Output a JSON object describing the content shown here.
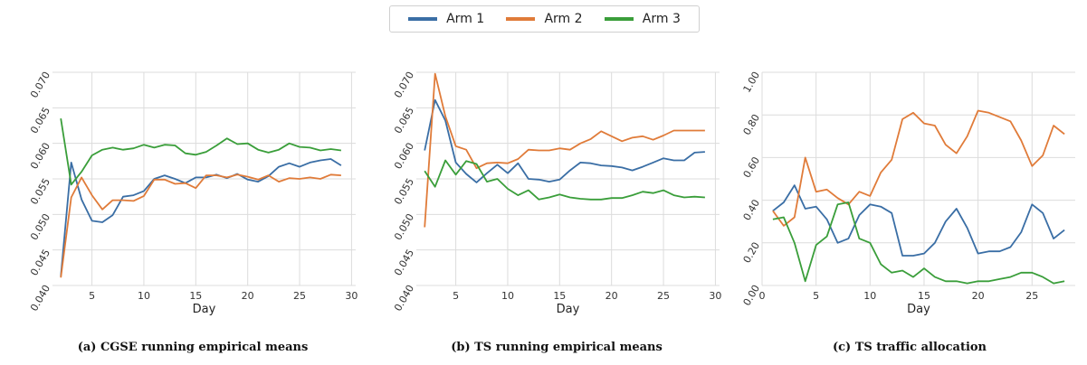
{
  "legend": [
    {
      "name": "Arm 1",
      "color": "#3a6ea5"
    },
    {
      "name": "Arm 2",
      "color": "#e07b39"
    },
    {
      "name": "Arm 3",
      "color": "#3a9e3a"
    }
  ],
  "chart_data": [
    {
      "type": "line",
      "caption": "(a) CGSE running empirical means",
      "xlabel": "Day",
      "ylabel": "",
      "xlim": [
        1.2,
        30.4
      ],
      "ylim": [
        0.04,
        0.07
      ],
      "xticks": [
        5,
        10,
        15,
        20,
        25,
        30
      ],
      "xtick_labels": [
        "5",
        "10",
        "15",
        "20",
        "25",
        "30"
      ],
      "yticks": [
        0.04,
        0.045,
        0.05,
        0.055,
        0.06,
        0.065,
        0.07
      ],
      "ytick_labels": [
        "0.040",
        "0.045",
        "0.050",
        "0.055",
        "0.060",
        "0.065",
        "0.070"
      ],
      "grid": true,
      "x": [
        2,
        3,
        4,
        5,
        6,
        7,
        8,
        9,
        10,
        11,
        12,
        13,
        14,
        15,
        16,
        17,
        18,
        19,
        20,
        21,
        22,
        23,
        24,
        25,
        26,
        27,
        28,
        29
      ],
      "series": [
        {
          "name": "Arm 1",
          "values": [
            0.0413,
            0.0573,
            0.0521,
            0.0491,
            0.0489,
            0.0499,
            0.0525,
            0.0527,
            0.0533,
            0.055,
            0.0555,
            0.055,
            0.0544,
            0.0552,
            0.0552,
            0.0556,
            0.0551,
            0.0557,
            0.0549,
            0.0546,
            0.0554,
            0.0567,
            0.0572,
            0.0567,
            0.0573,
            0.0576,
            0.0578,
            0.0569
          ]
        },
        {
          "name": "Arm 2",
          "values": [
            0.0411,
            0.0524,
            0.0552,
            0.0527,
            0.0507,
            0.052,
            0.052,
            0.0519,
            0.0526,
            0.0549,
            0.0549,
            0.0543,
            0.0544,
            0.0537,
            0.0555,
            0.0555,
            0.0552,
            0.0556,
            0.0553,
            0.0549,
            0.0555,
            0.0546,
            0.0551,
            0.055,
            0.0552,
            0.055,
            0.0556,
            0.0555
          ]
        },
        {
          "name": "Arm 3",
          "values": [
            0.0635,
            0.0542,
            0.056,
            0.0583,
            0.0591,
            0.0594,
            0.0591,
            0.0593,
            0.0598,
            0.0594,
            0.0598,
            0.0597,
            0.0586,
            0.0584,
            0.0588,
            0.0597,
            0.0607,
            0.0599,
            0.06,
            0.0591,
            0.0587,
            0.0591,
            0.06,
            0.0595,
            0.0594,
            0.059,
            0.0592,
            0.059
          ]
        }
      ]
    },
    {
      "type": "line",
      "caption": "(b) TS running empirical means",
      "xlabel": "Day",
      "ylabel": "",
      "xlim": [
        1.2,
        30.4
      ],
      "ylim": [
        0.04,
        0.07
      ],
      "xticks": [
        5,
        10,
        15,
        20,
        25,
        30
      ],
      "xtick_labels": [
        "5",
        "10",
        "15",
        "20",
        "25",
        "30"
      ],
      "yticks": [
        0.04,
        0.045,
        0.05,
        0.055,
        0.06,
        0.065,
        0.07
      ],
      "ytick_labels": [
        "0.040",
        "0.045",
        "0.050",
        "0.055",
        "0.060",
        "0.065",
        "0.070"
      ],
      "grid": true,
      "x": [
        2,
        3,
        4,
        5,
        6,
        7,
        8,
        9,
        10,
        11,
        12,
        13,
        14,
        15,
        16,
        17,
        18,
        19,
        20,
        21,
        22,
        23,
        24,
        25,
        26,
        27,
        28,
        29
      ],
      "series": [
        {
          "name": "Arm 1",
          "values": [
            0.059,
            0.0661,
            0.0632,
            0.0573,
            0.0557,
            0.0545,
            0.0558,
            0.057,
            0.0558,
            0.0572,
            0.055,
            0.0549,
            0.0546,
            0.0549,
            0.0562,
            0.0573,
            0.0572,
            0.0569,
            0.0568,
            0.0566,
            0.0562,
            0.0567,
            0.0573,
            0.0579,
            0.0576,
            0.0576,
            0.0587,
            0.0588
          ]
        },
        {
          "name": "Arm 2",
          "values": [
            0.0482,
            0.0698,
            0.0638,
            0.0596,
            0.0591,
            0.0565,
            0.0572,
            0.0573,
            0.0572,
            0.0578,
            0.0591,
            0.059,
            0.059,
            0.0593,
            0.0591,
            0.06,
            0.0606,
            0.0617,
            0.061,
            0.0603,
            0.0608,
            0.061,
            0.0605,
            0.0611,
            0.0618,
            0.0618,
            0.0618,
            0.0618
          ]
        },
        {
          "name": "Arm 3",
          "values": [
            0.0561,
            0.0539,
            0.0576,
            0.0556,
            0.0575,
            0.0571,
            0.0546,
            0.055,
            0.0536,
            0.0527,
            0.0534,
            0.0521,
            0.0524,
            0.0528,
            0.0524,
            0.0522,
            0.0521,
            0.0521,
            0.0523,
            0.0523,
            0.0527,
            0.0532,
            0.053,
            0.0534,
            0.0527,
            0.0524,
            0.0525,
            0.0524
          ]
        }
      ]
    },
    {
      "type": "line",
      "caption": "(c) TS traffic allocation",
      "xlabel": "Day",
      "ylabel": "",
      "xlim": [
        0.0,
        29.0
      ],
      "ylim": [
        0.0,
        1.0
      ],
      "xticks": [
        0,
        5,
        10,
        15,
        20,
        25
      ],
      "xtick_labels": [
        "0",
        "5",
        "10",
        "15",
        "20",
        "25"
      ],
      "yticks": [
        0.0,
        0.2,
        0.4,
        0.6,
        0.8,
        1.0
      ],
      "ytick_labels": [
        "0.00",
        "0.20",
        "0.40",
        "0.60",
        "0.80",
        "1.00"
      ],
      "grid": true,
      "x": [
        1,
        2,
        3,
        4,
        5,
        6,
        7,
        8,
        9,
        10,
        11,
        12,
        13,
        14,
        15,
        16,
        17,
        18,
        19,
        20,
        21,
        22,
        23,
        24,
        25,
        26,
        27,
        28
      ],
      "series": [
        {
          "name": "Arm 1",
          "values": [
            0.35,
            0.39,
            0.47,
            0.36,
            0.37,
            0.31,
            0.2,
            0.22,
            0.33,
            0.38,
            0.37,
            0.34,
            0.14,
            0.14,
            0.15,
            0.2,
            0.3,
            0.36,
            0.27,
            0.15,
            0.16,
            0.16,
            0.18,
            0.25,
            0.38,
            0.34,
            0.22,
            0.26
          ]
        },
        {
          "name": "Arm 2",
          "values": [
            0.35,
            0.28,
            0.32,
            0.6,
            0.44,
            0.45,
            0.41,
            0.38,
            0.44,
            0.42,
            0.53,
            0.59,
            0.78,
            0.81,
            0.76,
            0.75,
            0.66,
            0.62,
            0.7,
            0.82,
            0.81,
            0.79,
            0.77,
            0.68,
            0.56,
            0.61,
            0.75,
            0.71
          ]
        },
        {
          "name": "Arm 3",
          "values": [
            0.31,
            0.32,
            0.2,
            0.02,
            0.19,
            0.23,
            0.38,
            0.39,
            0.22,
            0.2,
            0.1,
            0.06,
            0.07,
            0.04,
            0.08,
            0.04,
            0.02,
            0.02,
            0.01,
            0.02,
            0.02,
            0.03,
            0.04,
            0.06,
            0.06,
            0.04,
            0.01,
            0.02
          ]
        }
      ]
    }
  ]
}
